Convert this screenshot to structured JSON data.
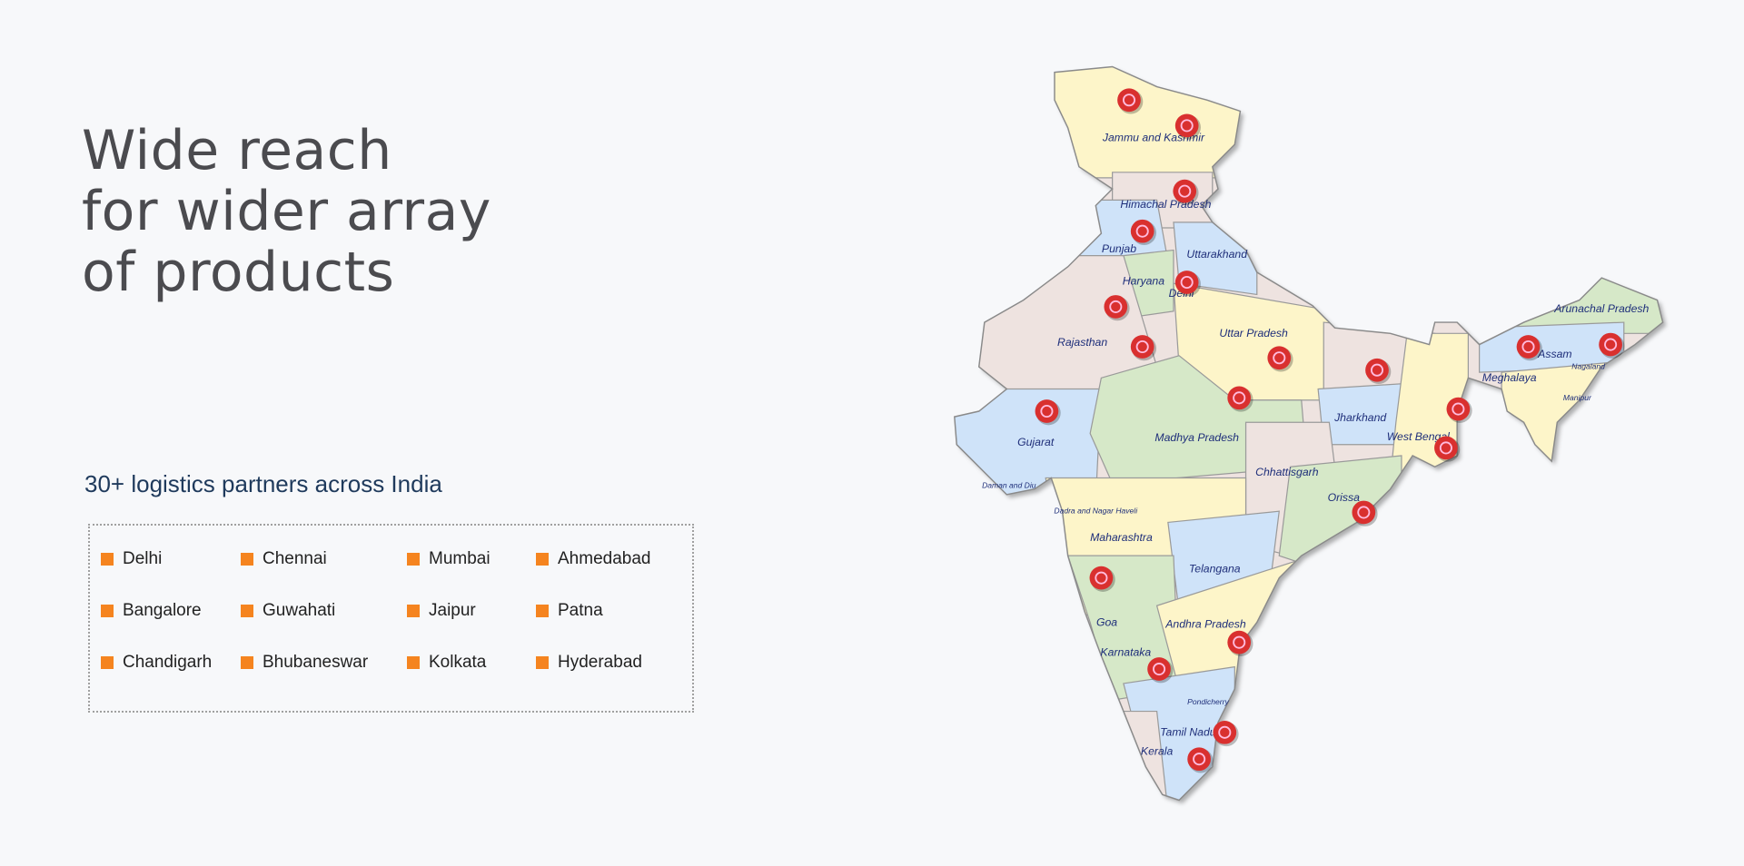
{
  "heading": {
    "lines": [
      "Wide reach",
      "for wider array",
      "of products"
    ]
  },
  "subheading": "30+ logistics partners across India",
  "cities": [
    "Delhi",
    "Chennai",
    "Mumbai",
    "Ahmedabad",
    "Bangalore",
    "Guwahati",
    "Jaipur",
    "Patna",
    "Chandigarh",
    "Bhubaneswar",
    "Kolkata",
    "Hyderabad"
  ],
  "map": {
    "labels": [
      "Jammu and Kashmir",
      "Himachal Pradesh",
      "Punjab",
      "Uttarakhand",
      "Haryana",
      "Delhi",
      "Rajasthan",
      "Uttar Pradesh",
      "Gujarat",
      "Madhya Pradesh",
      "Jharkhand",
      "West Bengal",
      "Chhattisgarh",
      "Orissa",
      "Daman and Diu",
      "Dadra and Nagar Haveli",
      "Maharashtra",
      "Telangana",
      "Andhra Pradesh",
      "Goa",
      "Karnataka",
      "Pondicherry",
      "Tamil Nadu",
      "Kerala",
      "Arunachal Pradesh",
      "Assam",
      "Nagaland",
      "Meghalaya",
      "Manipur"
    ]
  }
}
